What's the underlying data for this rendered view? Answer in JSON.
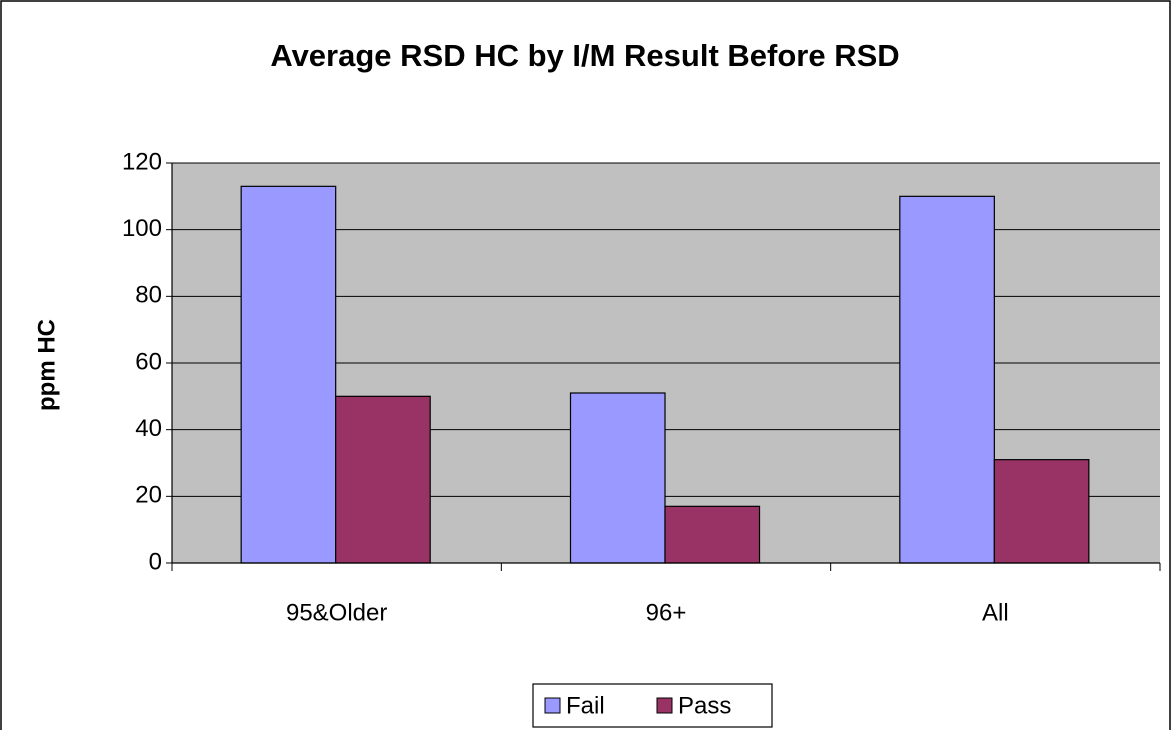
{
  "chart_data": {
    "type": "bar",
    "title": "Average RSD HC by I/M Result Before RSD",
    "y_label": "ppm HC",
    "categories": [
      "95&Older",
      "96+",
      "All"
    ],
    "series": [
      {
        "name": "Fail",
        "color": "#9999ff",
        "values": [
          113,
          51,
          110
        ]
      },
      {
        "name": "Pass",
        "color": "#993366",
        "values": [
          50,
          17,
          31
        ]
      }
    ],
    "ylim": [
      0,
      120
    ],
    "yticks": [
      0,
      20,
      40,
      60,
      80,
      100,
      120
    ],
    "grid": true,
    "legend": "bottom",
    "plot_background": "#c0c0c0"
  }
}
